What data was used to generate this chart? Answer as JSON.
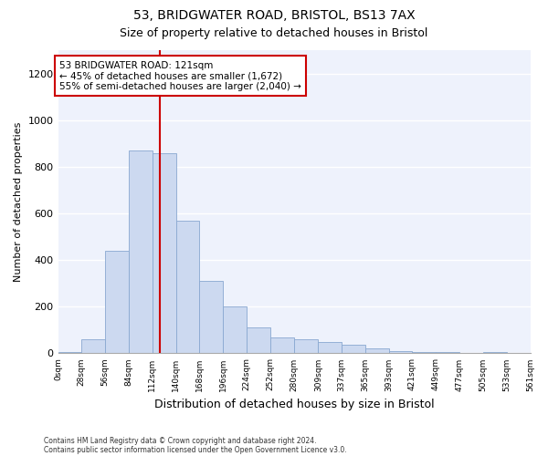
{
  "title_line1": "53, BRIDGWATER ROAD, BRISTOL, BS13 7AX",
  "title_line2": "Size of property relative to detached houses in Bristol",
  "xlabel": "Distribution of detached houses by size in Bristol",
  "ylabel": "Number of detached properties",
  "bar_color": "#ccd9f0",
  "bar_edge_color": "#89a8d0",
  "vline_color": "#cc0000",
  "vline_x": 121,
  "background_color": "#eef2fc",
  "annotation_text": "53 BRIDGWATER ROAD: 121sqm\n← 45% of detached houses are smaller (1,672)\n55% of semi-detached houses are larger (2,040) →",
  "footnote1": "Contains HM Land Registry data © Crown copyright and database right 2024.",
  "footnote2": "Contains public sector information licensed under the Open Government Licence v3.0.",
  "bin_edges": [
    0,
    28,
    56,
    84,
    112,
    140,
    168,
    196,
    224,
    252,
    280,
    309,
    337,
    365,
    393,
    421,
    449,
    477,
    505,
    533,
    561
  ],
  "bar_heights": [
    5,
    60,
    440,
    870,
    860,
    570,
    310,
    200,
    110,
    70,
    60,
    50,
    35,
    20,
    10,
    5,
    5,
    0,
    5,
    0
  ],
  "ylim": [
    0,
    1300
  ],
  "yticks": [
    0,
    200,
    400,
    600,
    800,
    1000,
    1200
  ]
}
